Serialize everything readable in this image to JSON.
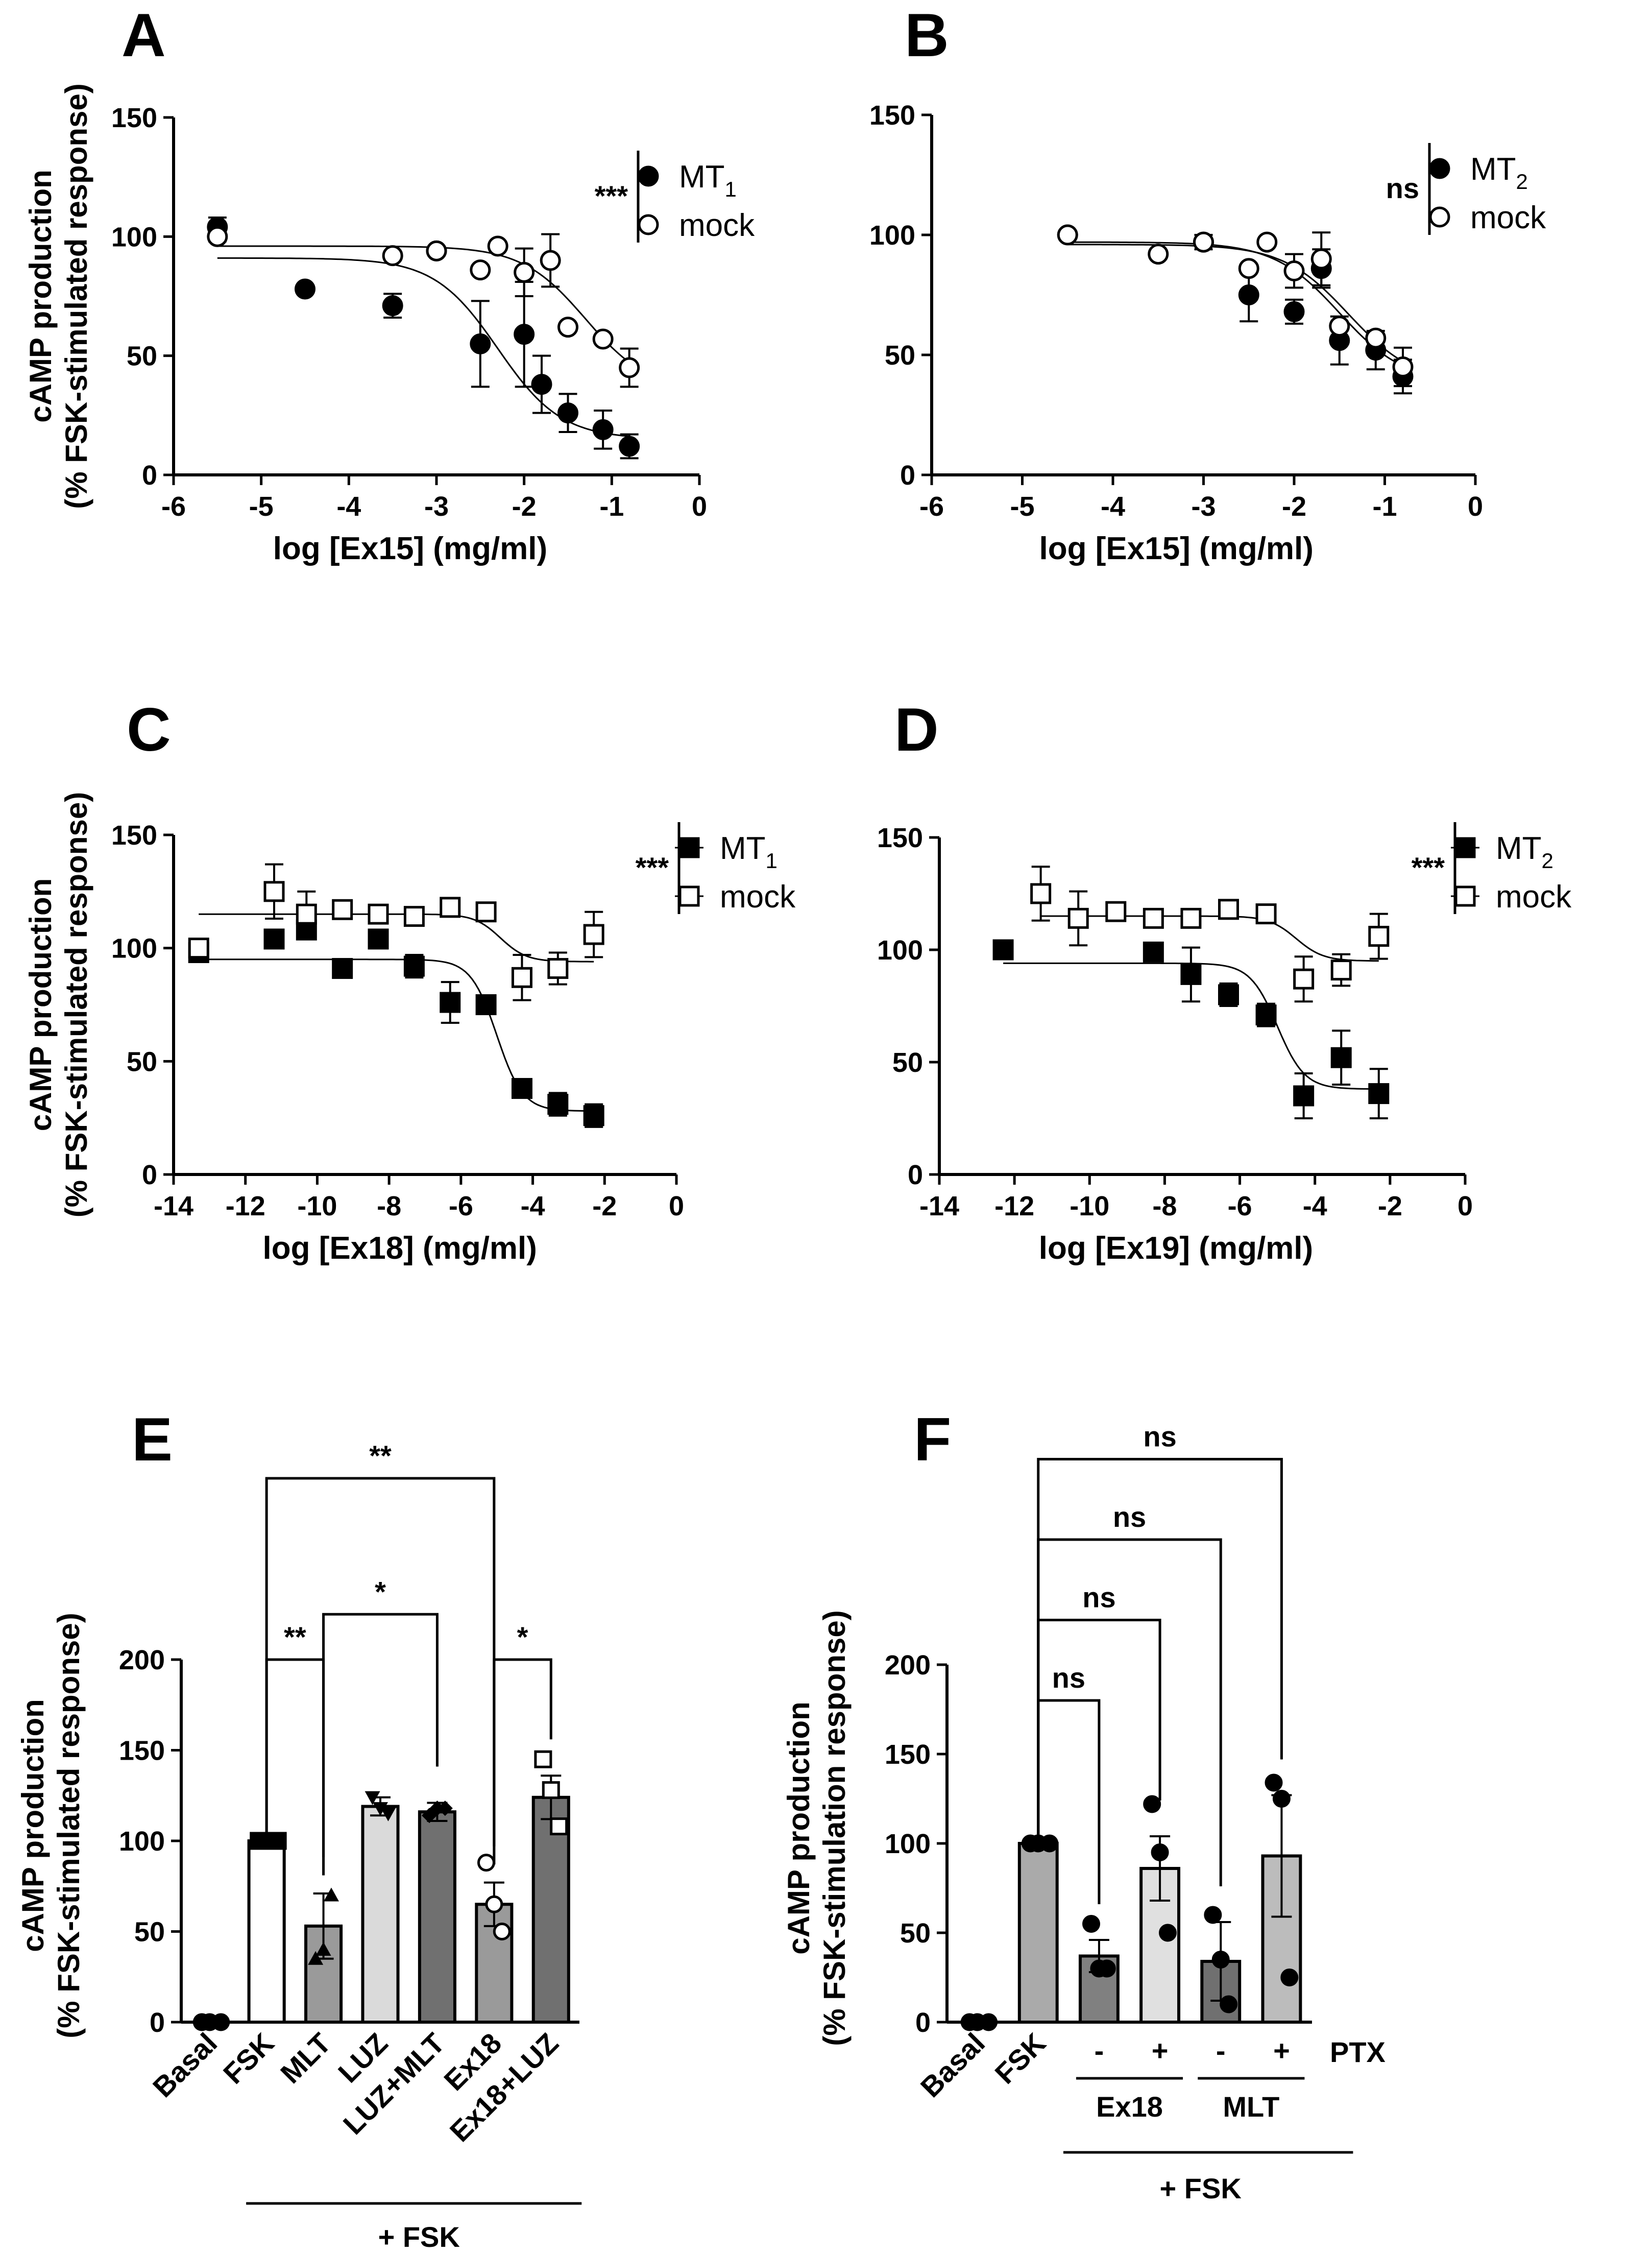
{
  "chart_data": [
    {
      "type": "scatter",
      "panel": "A",
      "xlabel": "log [Ex15] (mg/ml)",
      "ylabel": [
        "cAMP production",
        "(% FSK-stimulated response)"
      ],
      "xlim": [
        -6,
        0
      ],
      "ylim": [
        0,
        150
      ],
      "xticks": [
        "-6",
        "-5",
        "-4",
        "-3",
        "-2",
        "-1",
        "0"
      ],
      "yticks": [
        "0",
        "50",
        "100",
        "150"
      ],
      "significance": "***",
      "series": [
        {
          "name": "MT",
          "sub": "1",
          "marker": "filled-circle",
          "x": [
            -5.5,
            -4.5,
            -3.5,
            -3.0,
            -2.5,
            -2.0,
            -1.8,
            -1.5,
            -1.1,
            -0.8
          ],
          "y": [
            104,
            78,
            71,
            94,
            55,
            59,
            38,
            26,
            19,
            12
          ],
          "err": [
            4,
            0,
            5,
            0,
            18,
            22,
            12,
            8,
            8,
            5
          ],
          "fit": {
            "top": 91,
            "bottom": 15,
            "logec50": -2.3
          }
        },
        {
          "name": "mock",
          "marker": "open-circle",
          "x": [
            -5.5,
            -3.5,
            -3.0,
            -2.5,
            -2.3,
            -2.0,
            -1.7,
            -1.5,
            -1.1,
            -0.8
          ],
          "y": [
            100,
            92,
            94,
            86,
            96,
            85,
            90,
            62,
            57,
            45
          ],
          "err": [
            2,
            0,
            0,
            0,
            0,
            10,
            11,
            0,
            0,
            8
          ],
          "fit": {
            "top": 96,
            "bottom": 35,
            "logec50": -1.3
          }
        }
      ]
    },
    {
      "type": "scatter",
      "panel": "B",
      "xlabel": "log [Ex15] (mg/ml)",
      "xlim": [
        -6,
        0
      ],
      "ylim": [
        0,
        150
      ],
      "xticks": [
        "-6",
        "-5",
        "-4",
        "-3",
        "-2",
        "-1",
        "0"
      ],
      "yticks": [
        "0",
        "50",
        "100",
        "150"
      ],
      "significance": "ns",
      "series": [
        {
          "name": "MT",
          "sub": "2",
          "marker": "filled-circle",
          "x": [
            -4.5,
            -3.0,
            -2.5,
            -2.0,
            -1.7,
            -1.5,
            -1.1,
            -0.8
          ],
          "y": [
            100,
            97,
            75,
            68,
            86,
            56,
            52,
            41
          ],
          "err": [
            0,
            3,
            11,
            5,
            8,
            10,
            8,
            7
          ],
          "fit": {
            "top": 97,
            "bottom": 38,
            "logec50": -1.5
          }
        },
        {
          "name": "mock",
          "marker": "open-circle",
          "x": [
            -4.5,
            -3.5,
            -3.0,
            -2.5,
            -2.3,
            -2.0,
            -1.7,
            -1.5,
            -1.1,
            -0.8
          ],
          "y": [
            100,
            92,
            97,
            86,
            97,
            85,
            90,
            62,
            57,
            45
          ],
          "err": [
            0,
            0,
            0,
            0,
            0,
            7,
            11,
            0,
            0,
            8
          ],
          "fit": {
            "top": 96,
            "bottom": 38,
            "logec50": -1.4
          }
        }
      ]
    },
    {
      "type": "scatter",
      "panel": "C",
      "xlabel": "log [Ex18] (mg/ml)",
      "ylabel": [
        "cAMP production",
        "(% FSK-stimulated response)"
      ],
      "xlim": [
        -14,
        0
      ],
      "ylim": [
        0,
        150
      ],
      "xticks": [
        "-14",
        "-12",
        "-10",
        "-8",
        "-6",
        "-4",
        "-2",
        "0"
      ],
      "yticks": [
        "0",
        "50",
        "100",
        "150"
      ],
      "significance": "***",
      "series": [
        {
          "name": "MT",
          "sub": "1",
          "marker": "filled-square",
          "x": [
            -13.3,
            -11.2,
            -10.3,
            -9.3,
            -8.3,
            -7.3,
            -6.3,
            -5.3,
            -4.3,
            -3.3,
            -2.3
          ],
          "y": [
            98,
            104,
            108,
            91,
            104,
            92,
            76,
            75,
            38,
            31,
            26
          ],
          "err": [
            0,
            0,
            0,
            0,
            0,
            5,
            9,
            0,
            0,
            5,
            5
          ],
          "fit": {
            "top": 95,
            "bottom": 28,
            "logec50": -5.0
          }
        },
        {
          "name": "mock",
          "marker": "open-square",
          "x": [
            -13.3,
            -11.2,
            -10.3,
            -9.3,
            -8.3,
            -7.3,
            -6.3,
            -5.3,
            -4.3,
            -3.3,
            -2.3
          ],
          "y": [
            100,
            125,
            115,
            117,
            115,
            114,
            118,
            116,
            87,
            91,
            106
          ],
          "err": [
            0,
            12,
            10,
            0,
            0,
            0,
            0,
            0,
            10,
            7,
            10
          ],
          "fit": {
            "top": 115,
            "bottom": 94,
            "logec50": -4.9
          }
        }
      ]
    },
    {
      "type": "scatter",
      "panel": "D",
      "xlabel": "log [Ex19] (mg/ml)",
      "xlim": [
        -14,
        0
      ],
      "ylim": [
        0,
        150
      ],
      "xticks": [
        "-14",
        "-12",
        "-10",
        "-8",
        "-6",
        "-4",
        "-2",
        "0"
      ],
      "yticks": [
        "0",
        "50",
        "100",
        "150"
      ],
      "significance": "***",
      "series": [
        {
          "name": "MT",
          "sub": "2",
          "marker": "filled-square",
          "x": [
            -12.3,
            -8.3,
            -7.3,
            -6.3,
            -5.3,
            -4.3,
            -3.3,
            -2.3
          ],
          "y": [
            100,
            99,
            89,
            80,
            71,
            35,
            52,
            36
          ],
          "err": [
            0,
            0,
            12,
            5,
            5,
            10,
            12,
            11
          ],
          "fit": {
            "top": 94,
            "bottom": 38,
            "logec50": -5.0
          }
        },
        {
          "name": "mock",
          "marker": "open-square",
          "x": [
            -11.3,
            -10.3,
            -9.3,
            -8.3,
            -7.3,
            -6.3,
            -5.3,
            -4.3,
            -3.3,
            -2.3
          ],
          "y": [
            125,
            114,
            117,
            114,
            114,
            118,
            116,
            87,
            91,
            106
          ],
          "err": [
            12,
            12,
            0,
            0,
            0,
            0,
            0,
            10,
            7,
            10
          ],
          "fit": {
            "top": 115,
            "bottom": 95,
            "logec50": -4.5
          }
        }
      ]
    },
    {
      "type": "bar",
      "panel": "E",
      "ylabel": [
        "cAMP production",
        "(% FSK-stimulated response)"
      ],
      "ylim": [
        0,
        200
      ],
      "yticks": [
        "0",
        "50",
        "100",
        "150",
        "200"
      ],
      "categories": [
        "Basal",
        "FSK",
        "MLT",
        "LUZ",
        "LUZ+MLT",
        "Ex18",
        "Ex18+LUZ"
      ],
      "values": [
        0,
        100,
        53,
        119,
        116,
        65,
        124
      ],
      "errors": [
        0,
        0,
        18,
        5,
        5,
        12,
        12
      ],
      "bar_colors": [
        "#ffffff",
        "#ffffff",
        "#9a9a9a",
        "#dadada",
        "#707070",
        "#9a9a9a",
        "#707070"
      ],
      "points": [
        [
          0,
          0,
          0
        ],
        [
          100,
          100,
          100
        ],
        [
          35,
          40,
          70
        ],
        [
          124,
          118,
          115
        ],
        [
          114,
          118,
          118
        ],
        [
          88,
          65,
          50
        ],
        [
          145,
          128,
          108
        ]
      ],
      "point_markers": [
        "filled-circle",
        "filled-square",
        "filled-triangle",
        "filled-triangle-down",
        "filled-diamond",
        "open-circle",
        "open-square"
      ],
      "footer": "+ FSK",
      "brackets": [
        {
          "from": 1,
          "to": 2,
          "label": "**",
          "level": 200
        },
        {
          "from": 2,
          "to": 4,
          "label": "*",
          "level": 225
        },
        {
          "from": 1,
          "to": 5,
          "label": "**",
          "level": 300
        },
        {
          "from": 5,
          "to": 6,
          "label": "*",
          "level": 200
        }
      ]
    },
    {
      "type": "bar",
      "panel": "F",
      "ylabel": [
        "cAMP production",
        "(% FSK-stimulation response)"
      ],
      "ylim": [
        0,
        200
      ],
      "yticks": [
        "0",
        "50",
        "100",
        "150",
        "200"
      ],
      "categories": [
        "Basal",
        "FSK",
        "-",
        "+",
        "-",
        "+"
      ],
      "values": [
        0,
        100,
        37,
        86,
        34,
        93
      ],
      "errors": [
        0,
        0,
        9,
        18,
        22,
        34
      ],
      "bar_colors": [
        "#ffffff",
        "#aaaaaa",
        "#808080",
        "#e0e0e0",
        "#707070",
        "#bcbcbc"
      ],
      "points": [
        [
          0,
          0,
          0
        ],
        [
          100,
          100,
          100
        ],
        [
          55,
          30,
          30
        ],
        [
          122,
          95,
          50
        ],
        [
          60,
          35,
          10
        ],
        [
          134,
          125,
          25
        ]
      ],
      "point_markers": [
        "filled-circle",
        "filled-circle",
        "filled-circle",
        "filled-circle",
        "filled-circle",
        "filled-circle"
      ],
      "treatment_label": "PTX",
      "groups": [
        {
          "label": "Ex18",
          "from": 2,
          "to": 3
        },
        {
          "label": "MLT",
          "from": 4,
          "to": 5
        }
      ],
      "footer": "+ FSK",
      "brackets": [
        {
          "from": 1,
          "to": 2,
          "label": "ns",
          "level": 180
        },
        {
          "from": 1,
          "to": 3,
          "label": "ns",
          "level": 225
        },
        {
          "from": 1,
          "to": 4,
          "label": "ns",
          "level": 270
        },
        {
          "from": 1,
          "to": 5,
          "label": "ns",
          "level": 315
        }
      ]
    }
  ]
}
